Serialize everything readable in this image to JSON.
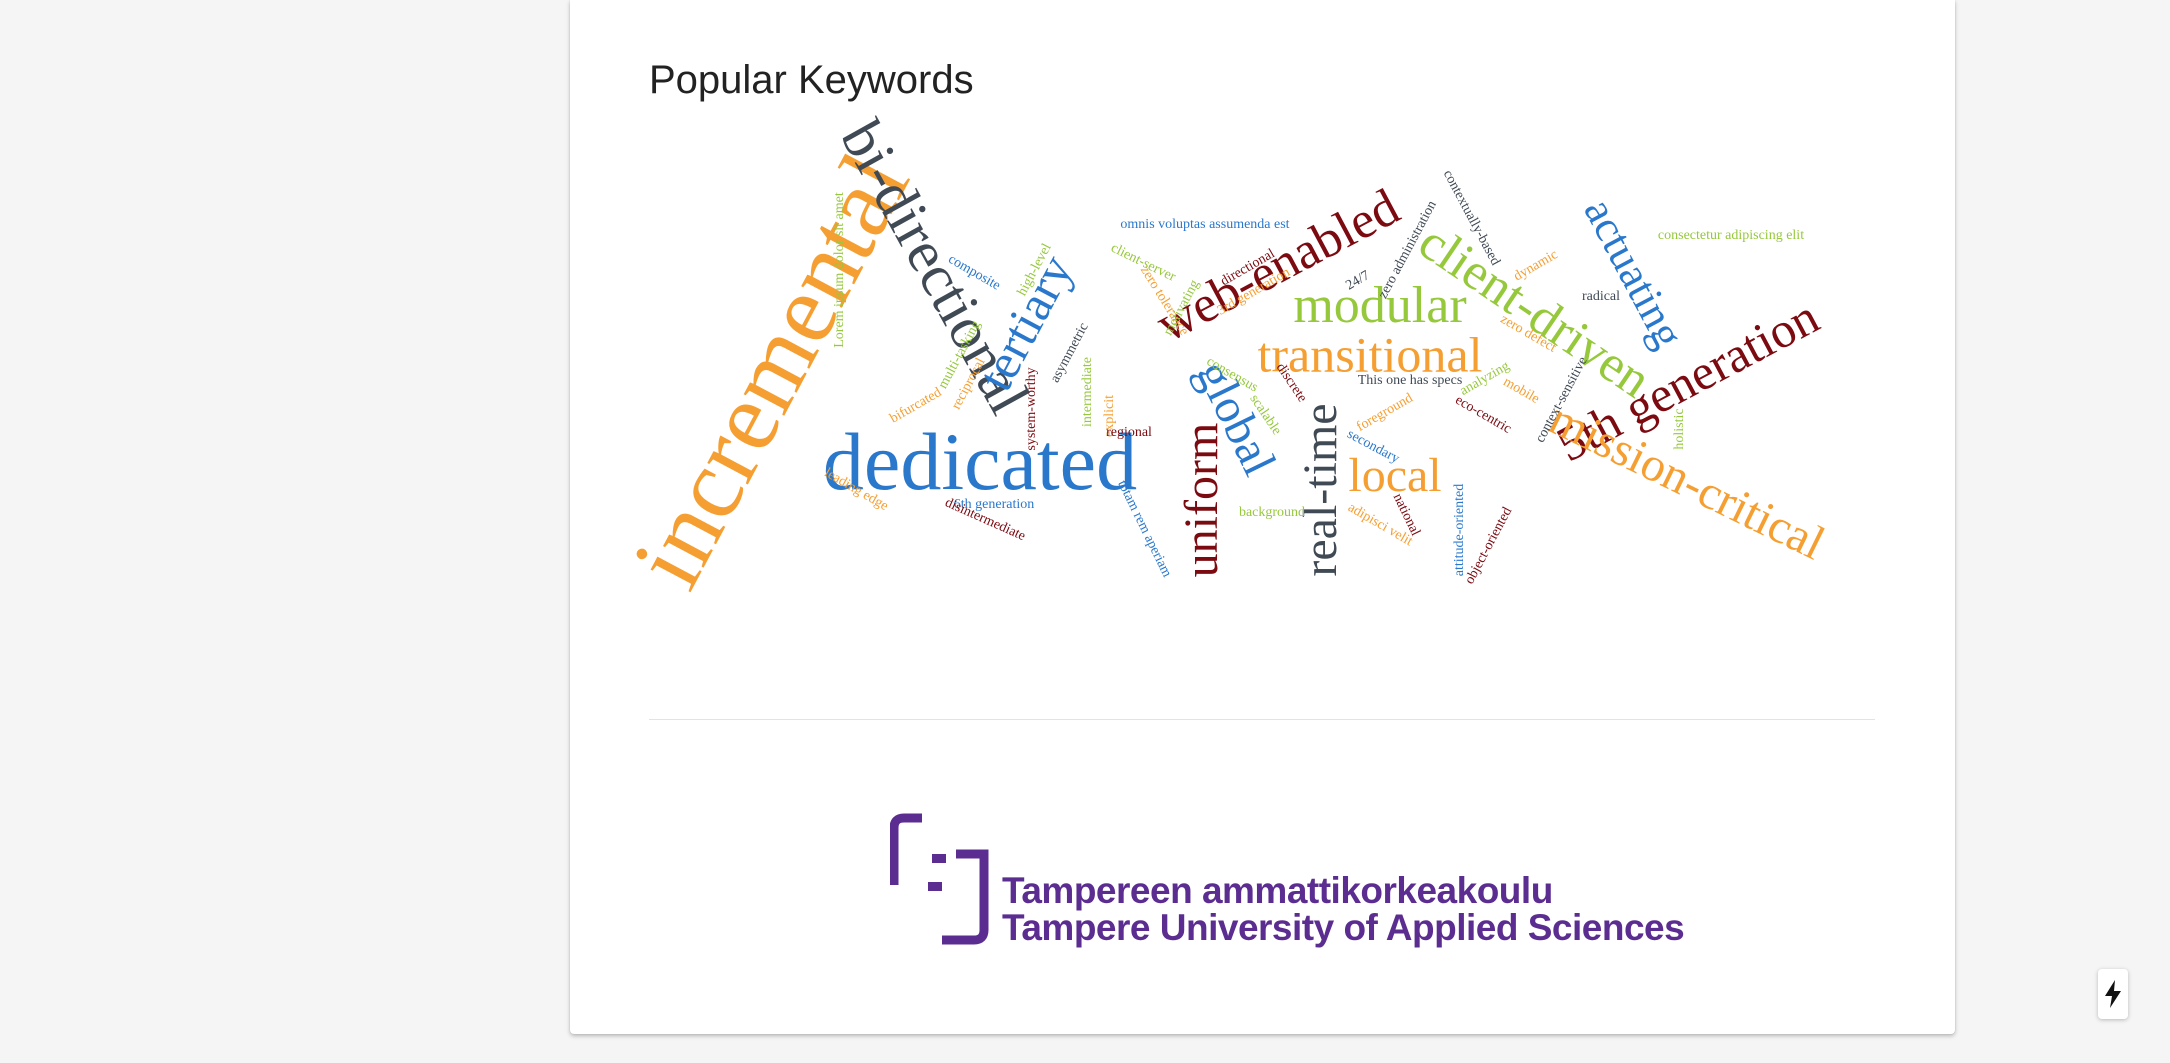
{
  "section": {
    "title": "Popular Keywords"
  },
  "colors": {
    "orange": "#f59f32",
    "blue": "#2a78cc",
    "maroon": "#7b0b11",
    "slate": "#404a55",
    "green": "#96c83c",
    "purple": "#5c2d91"
  },
  "keywords": [
    {
      "text": "incremental",
      "color": "orange"
    },
    {
      "text": "dedicated",
      "color": "blue"
    },
    {
      "text": "bi-directional",
      "color": "slate"
    },
    {
      "text": "web-enabled",
      "color": "maroon"
    },
    {
      "text": "modular",
      "color": "green"
    },
    {
      "text": "transitional",
      "color": "orange"
    },
    {
      "text": "client-driven",
      "color": "green"
    },
    {
      "text": "actuating",
      "color": "blue"
    },
    {
      "text": "5th generation",
      "color": "maroon"
    },
    {
      "text": "mission-critical",
      "color": "orange"
    },
    {
      "text": "local",
      "color": "orange"
    },
    {
      "text": "real-time",
      "color": "slate"
    },
    {
      "text": "uniform",
      "color": "maroon"
    },
    {
      "text": "global",
      "color": "blue"
    },
    {
      "text": "tertiary",
      "color": "blue"
    },
    {
      "text": "omnis voluptas assumenda est",
      "color": "blue"
    },
    {
      "text": "consectetur adipiscing elit",
      "color": "green"
    },
    {
      "text": "Lorem ipsum dolor sit amet",
      "color": "green"
    },
    {
      "text": "composite",
      "color": "blue"
    },
    {
      "text": "high-level",
      "color": "green"
    },
    {
      "text": "client-server",
      "color": "green"
    },
    {
      "text": "zero tolerance",
      "color": "orange"
    },
    {
      "text": "motivating",
      "color": "green"
    },
    {
      "text": "directional",
      "color": "maroon"
    },
    {
      "text": "3rd generation",
      "color": "orange"
    },
    {
      "text": "24/7",
      "color": "slate"
    },
    {
      "text": "zero administration",
      "color": "slate"
    },
    {
      "text": "contextually-based",
      "color": "slate"
    },
    {
      "text": "dynamic",
      "color": "orange"
    },
    {
      "text": "radical",
      "color": "slate"
    },
    {
      "text": "zero defect",
      "color": "orange"
    },
    {
      "text": "multi-tasking",
      "color": "green"
    },
    {
      "text": "reciprocal",
      "color": "orange"
    },
    {
      "text": "bifurcated",
      "color": "orange"
    },
    {
      "text": "asymmetric",
      "color": "slate"
    },
    {
      "text": "consensus",
      "color": "green"
    },
    {
      "text": "This one has specs",
      "color": "slate"
    },
    {
      "text": "analyzing",
      "color": "green"
    },
    {
      "text": "mobile",
      "color": "orange"
    },
    {
      "text": "context-sensitive",
      "color": "slate"
    },
    {
      "text": "system-worthy",
      "color": "maroon"
    },
    {
      "text": "intermediate",
      "color": "green"
    },
    {
      "text": "explicit",
      "color": "orange"
    },
    {
      "text": "regional",
      "color": "maroon"
    },
    {
      "text": "discrete",
      "color": "maroon"
    },
    {
      "text": "scalable",
      "color": "green"
    },
    {
      "text": "foreground",
      "color": "orange"
    },
    {
      "text": "eco-centric",
      "color": "maroon"
    },
    {
      "text": "secondary",
      "color": "blue"
    },
    {
      "text": "holistic",
      "color": "green"
    },
    {
      "text": "leading edge",
      "color": "orange"
    },
    {
      "text": "6th generation",
      "color": "blue"
    },
    {
      "text": "disintermediate",
      "color": "maroon"
    },
    {
      "text": "totam rem aperiam",
      "color": "blue"
    },
    {
      "text": "background",
      "color": "green"
    },
    {
      "text": "adipisci velit",
      "color": "orange"
    },
    {
      "text": "national",
      "color": "maroon"
    },
    {
      "text": "attitude-oriented",
      "color": "blue"
    },
    {
      "text": "object-oriented",
      "color": "maroon"
    }
  ],
  "logo": {
    "line1": "Tampereen ammattikorkeakoulu",
    "line2": "Tampere University of Applied Sciences"
  },
  "fab": {
    "icon": "lightning-bolt-icon"
  }
}
